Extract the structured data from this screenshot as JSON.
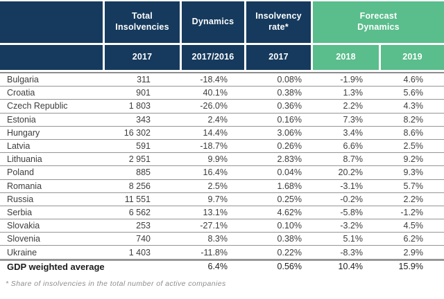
{
  "colors": {
    "header_navy": "#163a5d",
    "forecast_green": "#5abd8c"
  },
  "table": {
    "header": {
      "total_insolvencies": "Total Insolvencies",
      "dynamics": "Dynamics",
      "insolvency_rate": "Insolvency rate*",
      "forecast_dynamics": "Forecast Dynamics"
    },
    "subheader": {
      "total_year": "2017",
      "dynamics_period": "2017/2016",
      "rate_year": "2017",
      "forecast_year_1": "2018",
      "forecast_year_2": "2019"
    },
    "rows": [
      {
        "country": "Bulgaria",
        "total": "311",
        "dynamics": "-18.4%",
        "rate": "0.08%",
        "f2018": "-1.9%",
        "f2019": "4.6%"
      },
      {
        "country": "Croatia",
        "total": "901",
        "dynamics": "40.1%",
        "rate": "0.38%",
        "f2018": "1.3%",
        "f2019": "5.6%"
      },
      {
        "country": "Czech Republic",
        "total": "1 803",
        "dynamics": "-26.0%",
        "rate": "0.36%",
        "f2018": "2.2%",
        "f2019": "4.3%"
      },
      {
        "country": "Estonia",
        "total": "343",
        "dynamics": "2.4%",
        "rate": "0.16%",
        "f2018": "7.3%",
        "f2019": "8.2%"
      },
      {
        "country": "Hungary",
        "total": "16 302",
        "dynamics": "14.4%",
        "rate": "3.06%",
        "f2018": "3.4%",
        "f2019": "8.6%"
      },
      {
        "country": "Latvia",
        "total": "591",
        "dynamics": "-18.7%",
        "rate": "0.26%",
        "f2018": "6.6%",
        "f2019": "2.5%"
      },
      {
        "country": "Lithuania",
        "total": "2 951",
        "dynamics": "9.9%",
        "rate": "2.83%",
        "f2018": "8.7%",
        "f2019": "9.2%"
      },
      {
        "country": "Poland",
        "total": "885",
        "dynamics": "16.4%",
        "rate": "0.04%",
        "f2018": "20.2%",
        "f2019": "9.3%"
      },
      {
        "country": "Romania",
        "total": "8 256",
        "dynamics": "2.5%",
        "rate": "1.68%",
        "f2018": "-3.1%",
        "f2019": "5.7%"
      },
      {
        "country": "Russia",
        "total": "11 551",
        "dynamics": "9.7%",
        "rate": "0.25%",
        "f2018": "-0.2%",
        "f2019": "2.2%"
      },
      {
        "country": "Serbia",
        "total": "6 562",
        "dynamics": "13.1%",
        "rate": "4.62%",
        "f2018": "-5.8%",
        "f2019": "-1.2%"
      },
      {
        "country": "Slovakia",
        "total": "253",
        "dynamics": "-27.1%",
        "rate": "0.10%",
        "f2018": "-3.2%",
        "f2019": "4.5%"
      },
      {
        "country": "Slovenia",
        "total": "740",
        "dynamics": "8.3%",
        "rate": "0.38%",
        "f2018": "5.1%",
        "f2019": "6.2%"
      },
      {
        "country": "Ukraine",
        "total": "1 403",
        "dynamics": "-11.8%",
        "rate": "0.22%",
        "f2018": "-8.3%",
        "f2019": "2.9%"
      }
    ],
    "summary": {
      "label": "GDP weighted average",
      "total": "",
      "dynamics": "6.4%",
      "rate": "0.56%",
      "f2018": "10.4%",
      "f2019": "15.9%"
    }
  },
  "footnote": "* Share of insolvencies in the total number of active companies"
}
